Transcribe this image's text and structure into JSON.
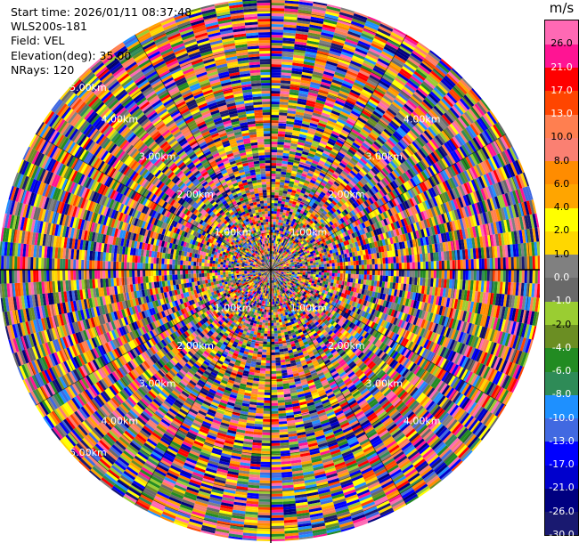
{
  "info": {
    "start_time": "Start time: 2026/01/11 08:37:48",
    "site": "WLS200s-181",
    "field": "Field: VEL",
    "elevation": "Elevation(deg): 35.00",
    "nrays": "NRays: 120"
  },
  "chart_data": {
    "type": "ppi",
    "field": "VEL",
    "units": "m/s",
    "elevation_deg": 35.0,
    "n_rays": 120,
    "range_ring_labels": [
      "1.00km",
      "2.00km",
      "3.00km",
      "4.00km",
      "5.00km"
    ],
    "colorbar": {
      "boundaries": [
        -30.0,
        -26.0,
        -21.0,
        -17.0,
        -13.0,
        -10.0,
        -8.0,
        -6.0,
        -4.0,
        -2.0,
        -1.0,
        0.0,
        1.0,
        2.0,
        4.0,
        6.0,
        8.0,
        10.0,
        13.0,
        17.0,
        21.0,
        26.0
      ],
      "labels": [
        "-30.0",
        "-26.0",
        "-21.0",
        "-17.0",
        "-13.0",
        "-10.0",
        "-8.0",
        "-6.0",
        "-4.0",
        "-2.0",
        "-1.0",
        "0.0",
        "1.0",
        "2.0",
        "4.0",
        "6.0",
        "8.0",
        "10.0",
        "13.0",
        "17.0",
        "21.0",
        "26.0"
      ],
      "colors": [
        "#191970",
        "#000080",
        "#0000cd",
        "#0000ff",
        "#4169e1",
        "#1e90ff",
        "#2e8b57",
        "#228b22",
        "#6b8e23",
        "#9acd32",
        "#696969",
        "#808080",
        "#ffd700",
        "#ffff00",
        "#ffa500",
        "#ff8c00",
        "#fa8072",
        "#ff7f50",
        "#ff4500",
        "#ff0000",
        "#ff1493",
        "#ff69b4"
      ]
    },
    "grid": true
  }
}
